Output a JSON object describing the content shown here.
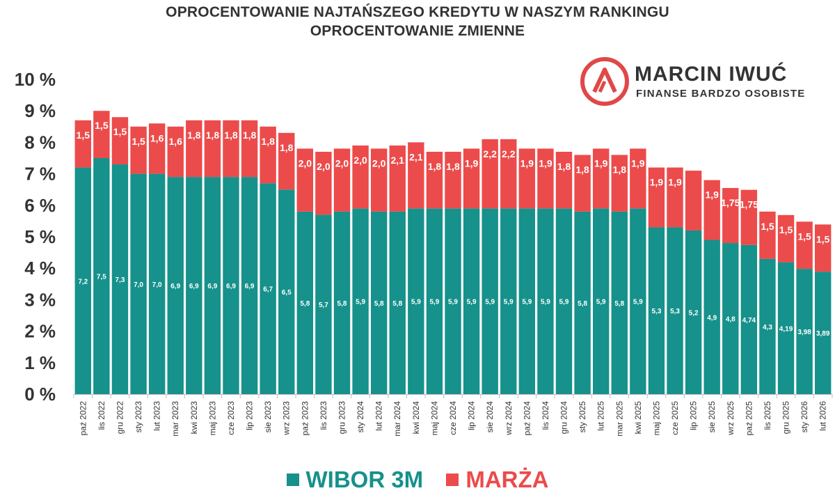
{
  "title_line1": "OPROCENTOWANIE NAJTAŃSZEGO KREDYTU W NASZYM RANKINGU",
  "title_line2": "OPROCENTOWANIE ZMIENNE",
  "logo": {
    "name": "MARCIN IWUĆ",
    "tagline": "FINANSE BARDZO OSOBISTE",
    "icon": "logo-circle-a-icon",
    "color": "#e04848"
  },
  "legend": [
    {
      "label": "WIBOR 3M",
      "color": "#16918b"
    },
    {
      "label": "MARŻA",
      "color": "#ec4b4b"
    }
  ],
  "chart_data": {
    "type": "bar",
    "stacked": true,
    "ylim": [
      0,
      10
    ],
    "yticks": [
      "0 %",
      "1 %",
      "2 %",
      "3 %",
      "4 %",
      "5 %",
      "6 %",
      "7 %",
      "8 %",
      "9 %",
      "10 %"
    ],
    "categories": [
      "paź 2022",
      "lis 2022",
      "gru 2022",
      "sty 2023",
      "lut 2023",
      "mar 2023",
      "kwi 2023",
      "maj 2023",
      "cze 2023",
      "lip 2023",
      "sie 2023",
      "wrz 2023",
      "paź 2023",
      "lis 2023",
      "gru 2023",
      "sty 2024",
      "lut 2024",
      "mar 2024",
      "kwi 2024",
      "maj 2024",
      "cze 2024",
      "lip 2024",
      "sie 2024",
      "wrz 2024",
      "paź 2024",
      "lis 2024",
      "gru 2024",
      "sty 2025",
      "lut 2025",
      "mar 2025",
      "kwi 2025",
      "maj 2025",
      "cze 2025",
      "lip 2025",
      "sie 2025",
      "wrz 2025",
      "paź 2025",
      "lis 2025",
      "gru 2025",
      "sty 2026",
      "lut 2026"
    ],
    "series": [
      {
        "name": "WIBOR 3M",
        "color": "#16918b",
        "values": [
          7.2,
          7.5,
          7.3,
          7.0,
          7.0,
          6.9,
          6.9,
          6.9,
          6.9,
          6.9,
          6.7,
          6.5,
          5.8,
          5.7,
          5.8,
          5.9,
          5.8,
          5.8,
          5.9,
          5.9,
          5.9,
          5.9,
          5.9,
          5.9,
          5.9,
          5.9,
          5.9,
          5.8,
          5.9,
          5.8,
          5.9,
          5.3,
          5.3,
          5.2,
          4.9,
          4.8,
          4.74,
          4.3,
          4.19,
          3.98,
          3.89
        ],
        "labels": [
          "7,2",
          "7,5",
          "7,3",
          "7,0",
          "7,0",
          "6,9",
          "6,9",
          "6,9",
          "6,9",
          "6,9",
          "6,7",
          "6,5",
          "5,8",
          "5,7",
          "5,8",
          "5,9",
          "5,8",
          "5,8",
          "5,9",
          "5,9",
          "5,9",
          "5,9",
          "5,9",
          "5,9",
          "5,9",
          "5,9",
          "5,9",
          "5,8",
          "5,9",
          "5,8",
          "5,9",
          "5,3",
          "5,3",
          "5,2",
          "4,9",
          "4,8",
          "4,74",
          "4,3",
          "4,19",
          "3,98",
          "3,89"
        ]
      },
      {
        "name": "MARŻA",
        "color": "#ec4b4b",
        "values": [
          1.5,
          1.5,
          1.5,
          1.5,
          1.6,
          1.6,
          1.8,
          1.8,
          1.8,
          1.8,
          1.8,
          1.8,
          2.0,
          2.0,
          2.0,
          2.0,
          2.0,
          2.1,
          2.1,
          1.8,
          1.8,
          1.9,
          2.2,
          2.2,
          1.9,
          1.9,
          1.8,
          1.8,
          1.9,
          1.8,
          1.9,
          1.9,
          1.9,
          1.9,
          1.9,
          1.75,
          1.75,
          1.5,
          1.5,
          1.5,
          1.5
        ],
        "labels": [
          "1,5",
          "1,5",
          "1,5",
          "1,5",
          "1,6",
          "1,6",
          "1,8",
          "1,8",
          "1,8",
          "1,8",
          "1,8",
          "1,8",
          "2,0",
          "2,0",
          "2,0",
          "2,0",
          "2,0",
          "2,1",
          "2,1",
          "1,8",
          "1,8",
          "1,9",
          "2,2",
          "2,2",
          "1,9",
          "1,9",
          "1,8",
          "1,8",
          "1,9",
          "1,8",
          "1,9",
          "1,9",
          "1,9",
          "",
          "1,9",
          "1,75",
          "1,75",
          "1,5",
          "1,5",
          "1,5",
          "1,5"
        ]
      }
    ],
    "grid": false,
    "legend_position": "bottom"
  }
}
